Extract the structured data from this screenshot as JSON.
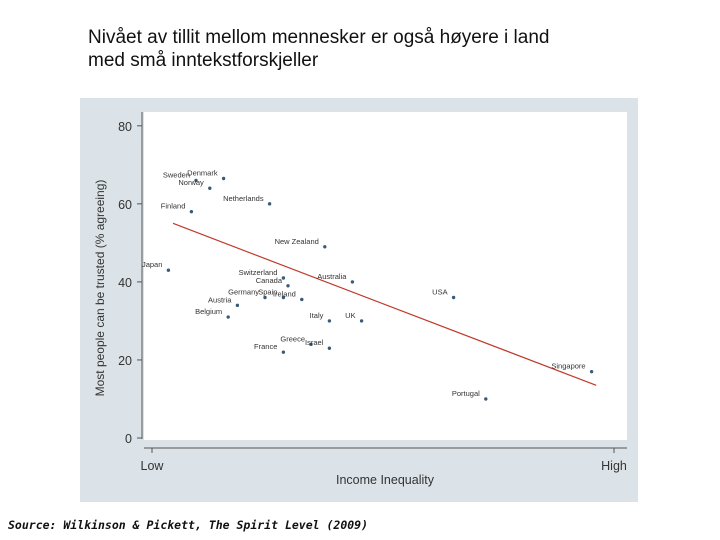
{
  "slide": {
    "title_line1": "Nivået av tillit mellom mennesker er også høyere i land",
    "title_line2": "med små inntekstforskjeller",
    "source": "Source: Wilkinson & Pickett, The Spirit Level (2009)"
  },
  "chart_data": {
    "type": "scatter",
    "title": "",
    "xlabel": "Income Inequality",
    "ylabel": "Most people can be trusted (% agreeing)",
    "x_tick_labels": [
      "Low",
      "High"
    ],
    "y_ticks": [
      0,
      20,
      40,
      60,
      80
    ],
    "ylim": [
      0,
      82
    ],
    "xlim": [
      0,
      1
    ],
    "grid": false,
    "colors": {
      "points": "#3a5a78",
      "trend": "#c0392b",
      "frame_bg": "#dce3e8",
      "plot_bg": "#ffffff"
    },
    "points": [
      {
        "name": "Sweden",
        "x": 0.1,
        "y": 66
      },
      {
        "name": "Denmark",
        "x": 0.16,
        "y": 66.5
      },
      {
        "name": "Norway",
        "x": 0.13,
        "y": 64
      },
      {
        "name": "Finland",
        "x": 0.09,
        "y": 58
      },
      {
        "name": "Netherlands",
        "x": 0.26,
        "y": 60
      },
      {
        "name": "Japan",
        "x": 0.04,
        "y": 43
      },
      {
        "name": "New Zealand",
        "x": 0.38,
        "y": 49
      },
      {
        "name": "Switzerland",
        "x": 0.29,
        "y": 41
      },
      {
        "name": "Australia",
        "x": 0.44,
        "y": 40
      },
      {
        "name": "Canada",
        "x": 0.3,
        "y": 39
      },
      {
        "name": "Germany",
        "x": 0.25,
        "y": 36
      },
      {
        "name": "Spain",
        "x": 0.29,
        "y": 36
      },
      {
        "name": "Ireland",
        "x": 0.33,
        "y": 35.5
      },
      {
        "name": "Austria",
        "x": 0.19,
        "y": 34
      },
      {
        "name": "USA",
        "x": 0.66,
        "y": 36
      },
      {
        "name": "Belgium",
        "x": 0.17,
        "y": 31
      },
      {
        "name": "Italy",
        "x": 0.39,
        "y": 30
      },
      {
        "name": "UK",
        "x": 0.46,
        "y": 30
      },
      {
        "name": "Greece",
        "x": 0.35,
        "y": 24
      },
      {
        "name": "Israel",
        "x": 0.39,
        "y": 23
      },
      {
        "name": "France",
        "x": 0.29,
        "y": 22
      },
      {
        "name": "Singapore",
        "x": 0.96,
        "y": 17
      },
      {
        "name": "Portugal",
        "x": 0.73,
        "y": 10
      }
    ],
    "trend_line": {
      "x": [
        0.05,
        0.97
      ],
      "y": [
        55,
        13.5
      ]
    }
  }
}
